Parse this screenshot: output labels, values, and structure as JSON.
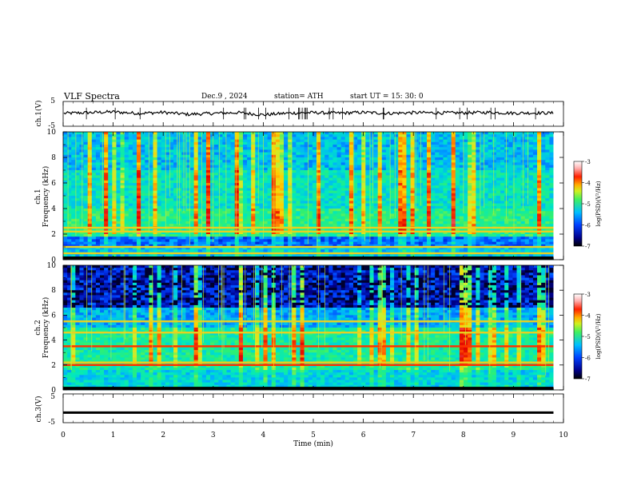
{
  "header": {
    "title": "VLF  Spectra",
    "date": "Dec.9  , 2024",
    "station": "station= ATH",
    "start": "start  UT  =   15: 30: 0"
  },
  "chart_data": [
    {
      "type": "line",
      "ylabel": "ch.1(V)",
      "ylim": [
        -5,
        5
      ],
      "yticks": [
        "5",
        "-5"
      ],
      "x": [
        0,
        0.5,
        1,
        1.5,
        2,
        2.5,
        3,
        3.5,
        4,
        4.5,
        5,
        5.5,
        6,
        6.5,
        7,
        7.5,
        8,
        8.5,
        9,
        9.5,
        9.8
      ],
      "values": [
        0.2,
        0.5,
        0.8,
        0.2,
        0.6,
        -0.2,
        0.2,
        0.5,
        -0.4,
        0.3,
        0.5,
        0.3,
        0.6,
        0.2,
        0.5,
        0.4,
        0.4,
        0.6,
        0.3,
        0.4,
        0.3
      ]
    },
    {
      "type": "heatmap",
      "ylabel": "ch.1\nFrequency  (kHz)",
      "ylim": [
        0,
        10
      ],
      "yticks": [
        "10",
        "8",
        "6",
        "4",
        "2",
        "0"
      ],
      "colorbar": {
        "label": "log(PSD)(V²/Hz)",
        "range": [
          -7,
          -3
        ],
        "ticks": [
          "-3",
          "-4",
          "-5",
          "-6",
          "-7"
        ]
      },
      "bands_khz": [
        0.5,
        1.0,
        2.2,
        2.5
      ]
    },
    {
      "type": "heatmap",
      "ylabel": "ch.2\nFrequency  (kHz)",
      "ylim": [
        0,
        10
      ],
      "yticks": [
        "10",
        "8",
        "6",
        "4",
        "2",
        "0"
      ],
      "colorbar": {
        "label": "log(PSD)(V²/Hz)",
        "range": [
          -7,
          -3
        ],
        "ticks": [
          "-3",
          "-4",
          "-5",
          "-6",
          "-7"
        ]
      },
      "bands_khz": [
        2.0,
        2.2,
        3.5,
        4.6,
        5.5
      ]
    },
    {
      "type": "line",
      "ylabel": "ch.3(V)",
      "ylim": [
        -5,
        5
      ],
      "yticks": [
        "5",
        "-5"
      ],
      "x": [
        0,
        9.8
      ],
      "values": [
        -1.5,
        -1.5
      ]
    }
  ],
  "xaxis": {
    "label": "Time  (min)",
    "range": [
      0,
      10
    ],
    "ticks": [
      "0",
      "1",
      "2",
      "3",
      "4",
      "5",
      "6",
      "7",
      "8",
      "9",
      "10"
    ]
  },
  "colors": {
    "scale": [
      "#000000",
      "#00008b",
      "#0040ff",
      "#00b0ff",
      "#00e8c0",
      "#30f070",
      "#c8f030",
      "#ffd000",
      "#ff5000",
      "#e00000",
      "#ffd0d0",
      "#ffffff"
    ]
  }
}
